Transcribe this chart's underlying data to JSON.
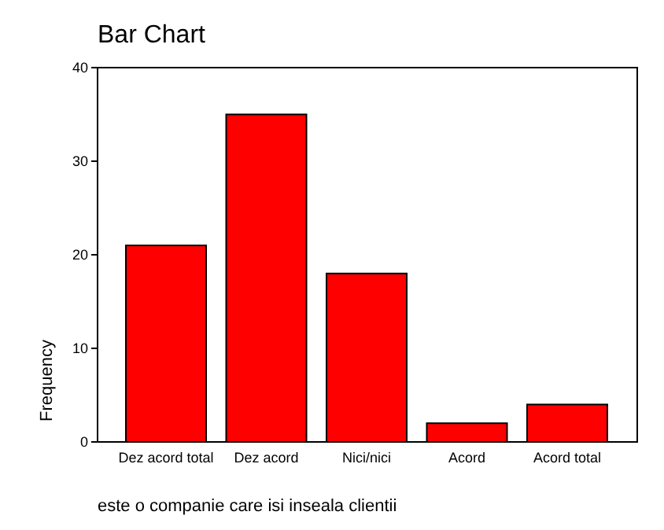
{
  "chart_data": {
    "type": "bar",
    "title": "Bar Chart",
    "xlabel": "este o companie care isi inseala clientii",
    "ylabel": "Frequency",
    "categories": [
      "Dez acord total",
      "Dez acord",
      "Nici/nici",
      "Acord",
      "Acord total"
    ],
    "values": [
      21,
      35,
      18,
      2,
      4
    ],
    "color": "#ff0000",
    "ylim": [
      0,
      40
    ],
    "yticks": [
      0,
      10,
      20,
      30,
      40
    ]
  }
}
